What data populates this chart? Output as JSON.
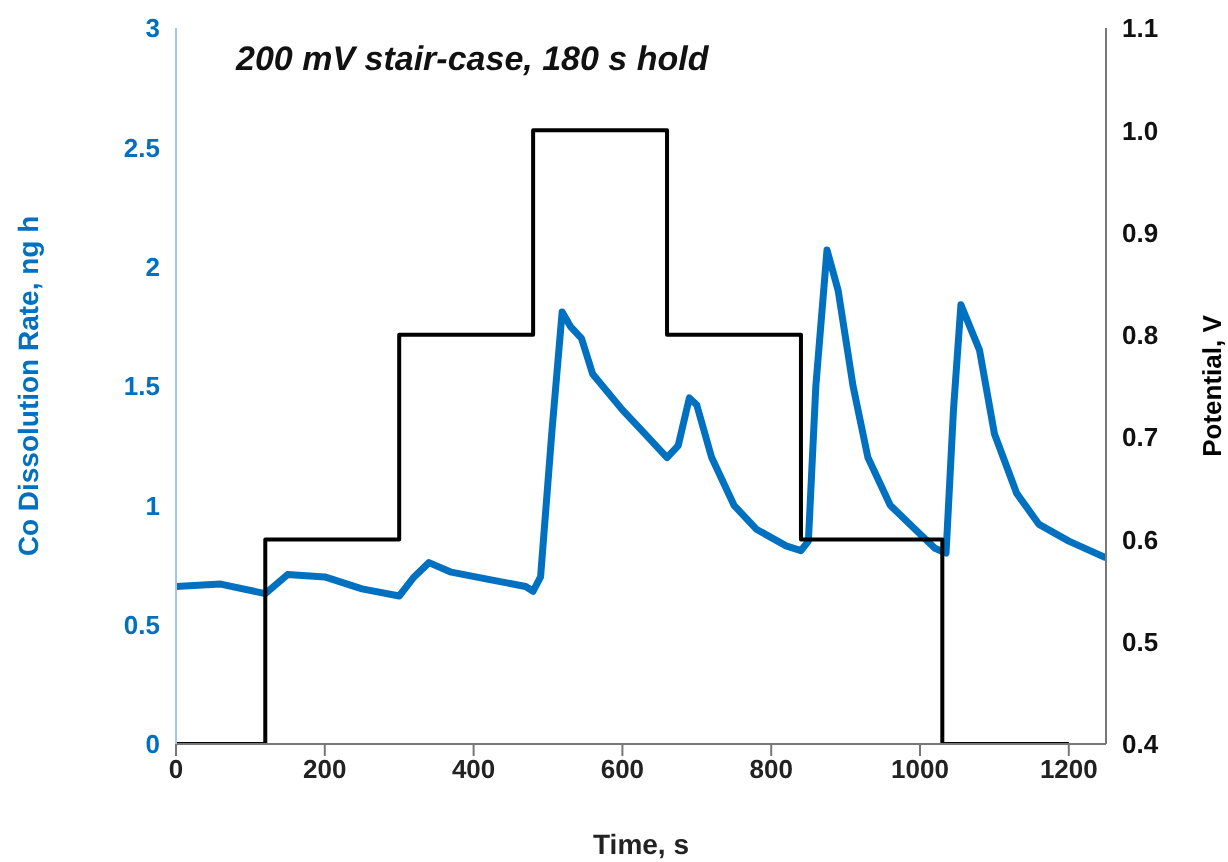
{
  "chart_data": {
    "type": "line",
    "xlabel": "Time, s",
    "ylabel": "Co Dissolution Rate, ng h",
    "y2label": "Potential, V",
    "annotations": [
      "200 mV stair-case, 180 s hold"
    ],
    "xlim": [
      0,
      1250
    ],
    "xticks": [
      0,
      200,
      400,
      600,
      800,
      1000,
      1200
    ],
    "ylim": [
      0,
      3
    ],
    "yticks": [
      0,
      0.5,
      1,
      1.5,
      2,
      2.5,
      3
    ],
    "y2lim": [
      0.4,
      1.1
    ],
    "y2ticks": [
      {
        "value": 0.4,
        "label": "0.4"
      },
      {
        "value": 0.5,
        "label": "0.5"
      },
      {
        "value": 0.6,
        "label": "0.6"
      },
      {
        "value": 0.7,
        "label": "0.7"
      },
      {
        "value": 0.8,
        "label": "0.8"
      },
      {
        "value": 0.9,
        "label": "0.9"
      },
      {
        "value": 1.0,
        "label": "1.0"
      },
      {
        "value": 1.1,
        "label": "1.1"
      }
    ],
    "marker": "none",
    "series": [
      {
        "color": "#0070c0",
        "x": [
          0,
          60,
          120,
          150,
          200,
          250,
          300,
          320,
          340,
          370,
          420,
          470,
          480,
          490,
          505,
          519,
          530,
          545,
          560,
          600,
          630,
          660,
          675,
          690,
          700,
          720,
          750,
          780,
          820,
          840,
          850,
          860,
          875,
          890,
          910,
          930,
          960,
          1000,
          1020,
          1035,
          1045,
          1055,
          1080,
          1100,
          1130,
          1160,
          1200,
          1250
        ],
        "values": [
          0.66,
          0.67,
          0.63,
          0.71,
          0.7,
          0.65,
          0.62,
          0.7,
          0.76,
          0.72,
          0.69,
          0.66,
          0.64,
          0.7,
          1.3,
          1.81,
          1.75,
          1.7,
          1.55,
          1.4,
          1.3,
          1.2,
          1.25,
          1.45,
          1.42,
          1.2,
          1.0,
          0.9,
          0.83,
          0.81,
          0.85,
          1.5,
          2.07,
          1.9,
          1.5,
          1.2,
          1.0,
          0.88,
          0.82,
          0.8,
          1.4,
          1.84,
          1.65,
          1.3,
          1.05,
          0.92,
          0.85,
          0.78
        ]
      },
      {
        "type": "step",
        "axis": "y2",
        "color": "#000000",
        "x": [
          0,
          120,
          300,
          480,
          660,
          840,
          1030,
          1200
        ],
        "values": [
          0.4,
          0.6,
          0.8,
          1.0,
          0.8,
          0.6,
          0.4,
          0.4
        ]
      }
    ]
  }
}
